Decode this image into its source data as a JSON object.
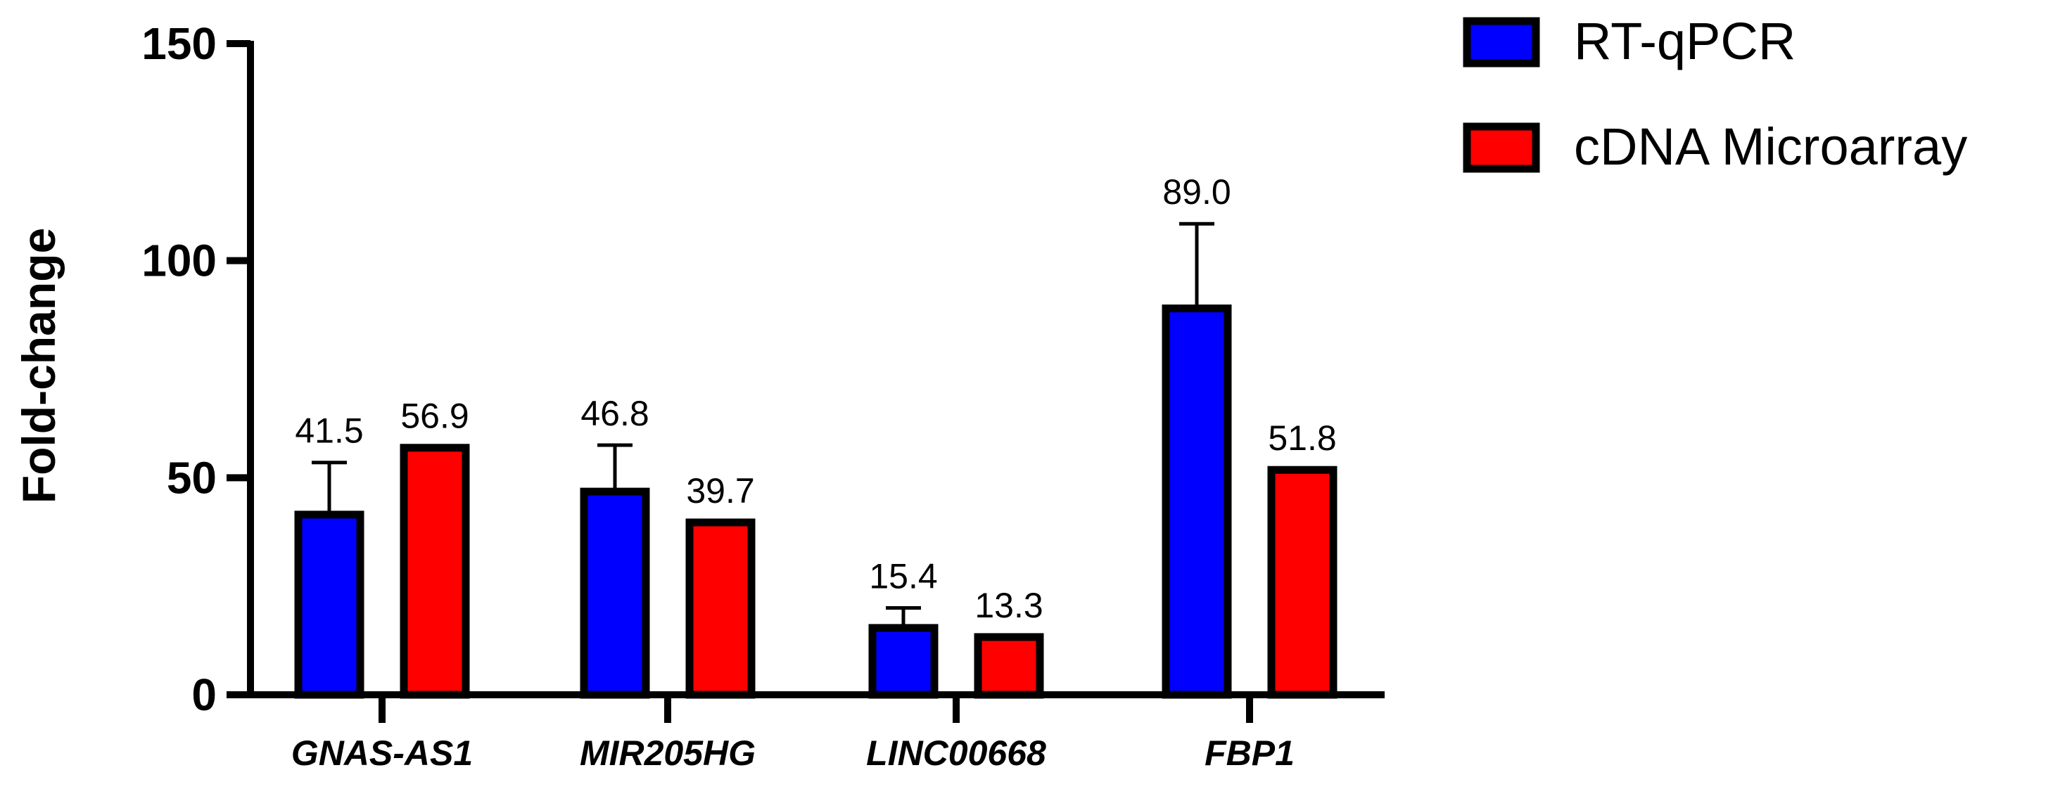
{
  "chart_data": {
    "type": "bar",
    "title": "",
    "xlabel": "",
    "ylabel": "Fold-change",
    "ylim": [
      0,
      150
    ],
    "yticks": [
      0,
      50,
      100,
      150
    ],
    "grid": false,
    "legend_position": "top-right",
    "categories": [
      "GNAS-AS1",
      "MIR205HG",
      "LINC00668",
      "FBP1"
    ],
    "series": [
      {
        "name": "RT-qPCR",
        "color": "#0000FF",
        "values": [
          41.5,
          46.8,
          15.4,
          89.0
        ],
        "error_upper": [
          53.5,
          57.5,
          20.0,
          108.5
        ],
        "data_labels": [
          "41.5",
          "46.8",
          "15.4",
          "89.0"
        ]
      },
      {
        "name": "cDNA Microarray",
        "color": "#FF0000",
        "values": [
          56.9,
          39.7,
          13.3,
          51.8
        ],
        "data_labels": [
          "56.9",
          "39.7",
          "13.3",
          "51.8"
        ]
      }
    ]
  }
}
